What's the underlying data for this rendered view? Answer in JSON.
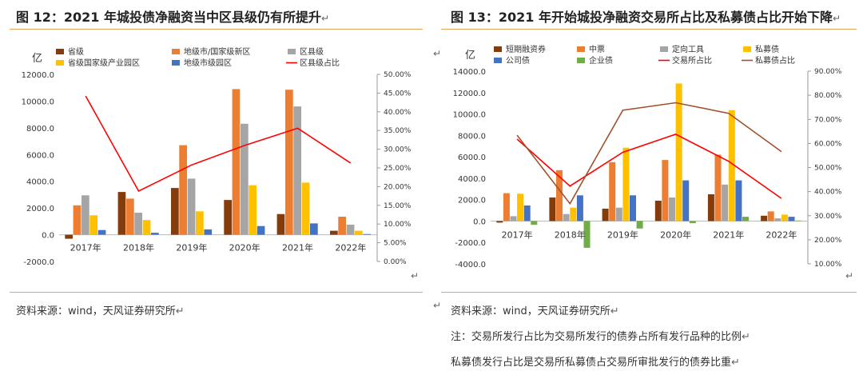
{
  "left": {
    "title": "图 12：2021 年城投债净融资当中区县级仍有所提升",
    "source": "资料来源：wind，天风证券研究所",
    "chart_data": {
      "type": "bar",
      "unit_label": "亿",
      "categories": [
        "2017年",
        "2018年",
        "2019年",
        "2020年",
        "2021年",
        "2022年"
      ],
      "y_left": {
        "min": -2000,
        "max": 12000,
        "step": 2000,
        "ticks": [
          "-2000.0",
          "0.0",
          "2000.0",
          "4000.0",
          "6000.0",
          "8000.0",
          "10000.0",
          "12000.0"
        ]
      },
      "y_right": {
        "min": 0,
        "max": 50,
        "step": 5,
        "ticks": [
          "0.00%",
          "5.00%",
          "10.00%",
          "15.00%",
          "20.00%",
          "25.00%",
          "30.00%",
          "35.00%",
          "40.00%",
          "45.00%",
          "50.00%"
        ]
      },
      "series": [
        {
          "name": "省级",
          "color": "#843c0c",
          "kind": "bar",
          "values": [
            -300,
            3200,
            3500,
            2600,
            1550,
            300
          ]
        },
        {
          "name": "地级市/国家级新区",
          "color": "#ed7d31",
          "kind": "bar",
          "values": [
            2200,
            2700,
            6700,
            10900,
            10850,
            1350
          ]
        },
        {
          "name": "区县级",
          "color": "#a5a5a5",
          "kind": "bar",
          "values": [
            2950,
            1650,
            4200,
            8300,
            9600,
            750
          ]
        },
        {
          "name": "省级国家级产业园区",
          "color": "#ffc000",
          "kind": "bar",
          "values": [
            1450,
            1100,
            1750,
            3700,
            3900,
            300
          ]
        },
        {
          "name": "地级市级园区",
          "color": "#4472c4",
          "kind": "bar",
          "values": [
            350,
            150,
            400,
            650,
            850,
            50
          ]
        }
      ],
      "lines": [
        {
          "name": "区县级占比",
          "color": "#ff0000",
          "axis": "right",
          "values": [
            44.2,
            18.8,
            25.8,
            31.0,
            35.6,
            26.3
          ]
        }
      ]
    }
  },
  "right": {
    "title": "图 13：2021 年开始城投净融资交易所占比及私募债占比开始下降",
    "source": "资料来源：wind，天风证券研究所",
    "note1": "注：交易所发行占比为交易所发行的债券占所有发行品种的比例",
    "note2": "私募债发行占比是交易所私募债占交易所审批发行的债券比重",
    "chart_data": {
      "type": "bar",
      "unit_label": "亿",
      "categories": [
        "2017年",
        "2018年",
        "2019年",
        "2020年",
        "2021年",
        "2022年"
      ],
      "y_left": {
        "min": -4000,
        "max": 14000,
        "step": 2000,
        "ticks": [
          "-4000.0",
          "-2000.0",
          "0.0",
          "2000.0",
          "4000.0",
          "6000.0",
          "8000.0",
          "10000.0",
          "12000.0",
          "14000.0"
        ]
      },
      "y_right": {
        "min": 10,
        "max": 90,
        "step": 10,
        "ticks": [
          "10.00%",
          "20.00%",
          "30.00%",
          "40.00%",
          "50.00%",
          "60.00%",
          "70.00%",
          "80.00%",
          "90.00%"
        ]
      },
      "series": [
        {
          "name": "短期融资券",
          "color": "#843c0c",
          "kind": "bar",
          "values": [
            -150,
            2200,
            1150,
            1900,
            2500,
            500
          ]
        },
        {
          "name": "中票",
          "color": "#ed7d31",
          "kind": "bar",
          "values": [
            2600,
            4750,
            5500,
            5700,
            6200,
            900
          ]
        },
        {
          "name": "定向工具",
          "color": "#a5a5a5",
          "kind": "bar",
          "values": [
            450,
            650,
            1250,
            2200,
            3400,
            250
          ]
        },
        {
          "name": "私募债",
          "color": "#ffc000",
          "kind": "bar",
          "values": [
            2550,
            1250,
            6850,
            12850,
            10350,
            600
          ]
        },
        {
          "name": "公司债",
          "color": "#4472c4",
          "kind": "bar",
          "values": [
            1450,
            2400,
            2400,
            3800,
            3800,
            400
          ]
        },
        {
          "name": "企业债",
          "color": "#70ad47",
          "kind": "bar",
          "values": [
            -350,
            -2500,
            -700,
            -200,
            400,
            50
          ]
        }
      ],
      "lines": [
        {
          "name": "交易所占比",
          "color": "#ff0000",
          "axis": "right",
          "values": [
            61.8,
            42.3,
            56.3,
            63.8,
            52.6,
            37.2
          ]
        },
        {
          "name": "私募债占比",
          "color": "#a0522d",
          "axis": "right",
          "values": [
            63.4,
            35.0,
            73.8,
            76.9,
            72.5,
            56.6
          ]
        }
      ]
    }
  }
}
